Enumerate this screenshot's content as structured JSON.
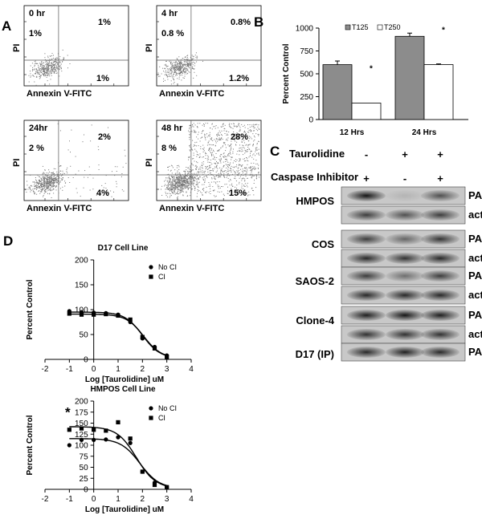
{
  "panels": {
    "a": "A",
    "b": "B",
    "c": "C",
    "d": "D"
  },
  "flow": {
    "xlabel": "Annexin V-FITC",
    "ylabel": "PI",
    "plots": [
      {
        "time": "0 hr",
        "ul": "1%",
        "ur": "1%",
        "lr": "1%"
      },
      {
        "time": "4 hr",
        "ul": "0.8  %",
        "ur": "0.8%",
        "lr": "1.2%"
      },
      {
        "time": "24hr",
        "ul": "2 %",
        "ur": "2%",
        "lr": "4%"
      },
      {
        "time": "48 hr",
        "ul": "8 %",
        "ur": "28%",
        "lr": "15%"
      }
    ]
  },
  "blot": {
    "taurolidine_label": "Taurolidine",
    "caspase_label": "Caspase Inhibitor",
    "taurolidine_signs": [
      "-",
      "+",
      "+"
    ],
    "caspase_signs": [
      "+",
      "-",
      "+"
    ],
    "cell_lines": [
      {
        "name": "HMPOS",
        "bands": [
          "PARP",
          "actin"
        ]
      },
      {
        "name": "COS",
        "bands": [
          "PARP",
          "actin"
        ]
      },
      {
        "name": "SAOS-2",
        "bands": [
          "PARP",
          "actin"
        ]
      },
      {
        "name": "Clone-4",
        "bands": [
          "PARP",
          "actin"
        ]
      },
      {
        "name": "D17 (IP)",
        "bands": [
          "PARP"
        ]
      }
    ]
  },
  "chart_data": [
    {
      "type": "bar",
      "panel": "B",
      "categories": [
        "12 Hrs",
        "24 Hrs"
      ],
      "series": [
        {
          "name": "T125",
          "values": [
            600,
            910
          ],
          "errors": [
            40,
            35
          ],
          "color": "#8c8c8c"
        },
        {
          "name": "T250",
          "values": [
            180,
            600
          ],
          "errors": [
            0,
            8
          ],
          "color": "#ffffff"
        }
      ],
      "annotations": [
        "*",
        "*"
      ],
      "ylabel": "Percent Control",
      "ylim": [
        0,
        1000
      ],
      "yticks": [
        0,
        250,
        500,
        750,
        1000
      ],
      "legend": "top"
    },
    {
      "type": "scatter",
      "panel": "D",
      "title": "D17 Cell Line",
      "xlabel": "Log [Taurolidine] uM",
      "ylabel": "Percent Control",
      "xlim": [
        -2,
        4
      ],
      "ylim": [
        0,
        200
      ],
      "xticks": [
        -2,
        -1,
        0,
        1,
        2,
        3,
        4
      ],
      "yticks": [
        0,
        50,
        100,
        150,
        200
      ],
      "legend": "top-right",
      "series": [
        {
          "name": "No CI",
          "marker": "circle",
          "x": [
            -1,
            -0.5,
            0,
            0.5,
            1,
            1.5,
            2,
            2.5,
            3
          ],
          "y": [
            97,
            95,
            94,
            93,
            90,
            75,
            42,
            25,
            8
          ],
          "curve": {
            "top": 95,
            "bottom": 2,
            "logEC50": 2.0,
            "hill": 1.2
          }
        },
        {
          "name": "CI",
          "marker": "square",
          "x": [
            -1,
            -0.5,
            0,
            0.5,
            1,
            1.5,
            2,
            2.5,
            3
          ],
          "y": [
            92,
            90,
            90,
            91,
            88,
            80,
            45,
            22,
            5
          ],
          "curve": {
            "top": 91,
            "bottom": 2,
            "logEC50": 2.05,
            "hill": 1.2
          }
        }
      ]
    },
    {
      "type": "scatter",
      "panel": "D",
      "title": "HMPOS Cell Line",
      "xlabel": "Log [Taurolidine] uM",
      "ylabel": "Percent Control",
      "xlim": [
        -2,
        4
      ],
      "ylim": [
        0,
        200
      ],
      "xticks": [
        -2,
        -1,
        0,
        1,
        2,
        3,
        4
      ],
      "yticks": [
        0,
        25,
        50,
        75,
        100,
        125,
        150,
        175,
        200
      ],
      "legend": "top-right",
      "annotations": [
        "*"
      ],
      "series": [
        {
          "name": "No CI",
          "marker": "circle",
          "x": [
            -1,
            -0.5,
            0,
            0.5,
            1,
            1.5,
            2,
            2.5,
            3
          ],
          "y": [
            100,
            112,
            112,
            113,
            118,
            105,
            40,
            15,
            5
          ],
          "curve": {
            "top": 115,
            "bottom": 2,
            "logEC50": 1.9,
            "hill": 1.1
          }
        },
        {
          "name": "CI",
          "marker": "square",
          "x": [
            -1,
            -0.5,
            0,
            0.5,
            1,
            1.5,
            2,
            2.5,
            3
          ],
          "y": [
            135,
            138,
            135,
            133,
            152,
            115,
            40,
            10,
            5
          ],
          "curve": {
            "top": 142,
            "bottom": 2,
            "logEC50": 1.75,
            "hill": 1.1
          }
        }
      ]
    }
  ]
}
